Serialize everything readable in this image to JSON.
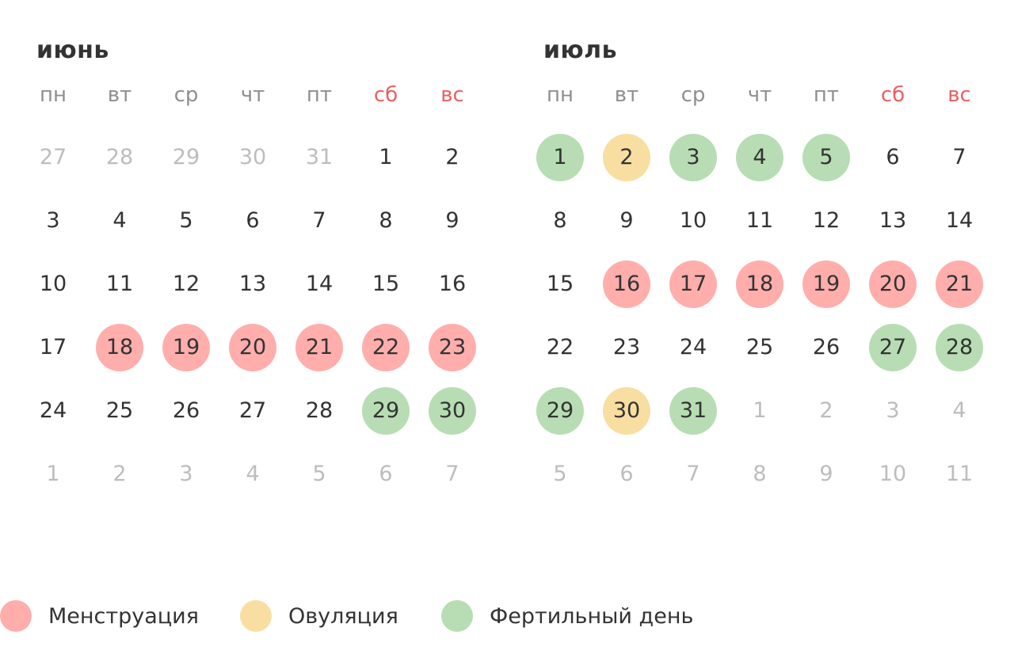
{
  "colors": {
    "menstruation": "#ffaeac",
    "ovulation": "#f9dea1",
    "fertile": "#b8ddb4",
    "weekend_header": "#ec5f5f",
    "text": "#333333",
    "muted": "#bdbdbd"
  },
  "weekdays": [
    "пн",
    "вт",
    "ср",
    "чт",
    "пт",
    "сб",
    "вс"
  ],
  "months": [
    {
      "title": "июнь",
      "weeks": [
        [
          {
            "d": "27",
            "t": "other"
          },
          {
            "d": "28",
            "t": "other"
          },
          {
            "d": "29",
            "t": "other"
          },
          {
            "d": "30",
            "t": "other"
          },
          {
            "d": "31",
            "t": "other"
          },
          {
            "d": "1",
            "t": ""
          },
          {
            "d": "2",
            "t": ""
          }
        ],
        [
          {
            "d": "3",
            "t": ""
          },
          {
            "d": "4",
            "t": ""
          },
          {
            "d": "5",
            "t": ""
          },
          {
            "d": "6",
            "t": ""
          },
          {
            "d": "7",
            "t": ""
          },
          {
            "d": "8",
            "t": ""
          },
          {
            "d": "9",
            "t": ""
          }
        ],
        [
          {
            "d": "10",
            "t": ""
          },
          {
            "d": "11",
            "t": ""
          },
          {
            "d": "12",
            "t": ""
          },
          {
            "d": "13",
            "t": ""
          },
          {
            "d": "14",
            "t": ""
          },
          {
            "d": "15",
            "t": ""
          },
          {
            "d": "16",
            "t": ""
          }
        ],
        [
          {
            "d": "17",
            "t": ""
          },
          {
            "d": "18",
            "t": "menstruation"
          },
          {
            "d": "19",
            "t": "menstruation"
          },
          {
            "d": "20",
            "t": "menstruation"
          },
          {
            "d": "21",
            "t": "menstruation"
          },
          {
            "d": "22",
            "t": "menstruation"
          },
          {
            "d": "23",
            "t": "menstruation"
          }
        ],
        [
          {
            "d": "24",
            "t": ""
          },
          {
            "d": "25",
            "t": ""
          },
          {
            "d": "26",
            "t": ""
          },
          {
            "d": "27",
            "t": ""
          },
          {
            "d": "28",
            "t": ""
          },
          {
            "d": "29",
            "t": "fertile"
          },
          {
            "d": "30",
            "t": "fertile"
          }
        ],
        [
          {
            "d": "1",
            "t": "other"
          },
          {
            "d": "2",
            "t": "other"
          },
          {
            "d": "3",
            "t": "other"
          },
          {
            "d": "4",
            "t": "other"
          },
          {
            "d": "5",
            "t": "other"
          },
          {
            "d": "6",
            "t": "other"
          },
          {
            "d": "7",
            "t": "other"
          }
        ]
      ]
    },
    {
      "title": "июль",
      "weeks": [
        [
          {
            "d": "1",
            "t": "fertile"
          },
          {
            "d": "2",
            "t": "ovulation"
          },
          {
            "d": "3",
            "t": "fertile"
          },
          {
            "d": "4",
            "t": "fertile"
          },
          {
            "d": "5",
            "t": "fertile"
          },
          {
            "d": "6",
            "t": ""
          },
          {
            "d": "7",
            "t": ""
          }
        ],
        [
          {
            "d": "8",
            "t": ""
          },
          {
            "d": "9",
            "t": ""
          },
          {
            "d": "10",
            "t": ""
          },
          {
            "d": "11",
            "t": ""
          },
          {
            "d": "12",
            "t": ""
          },
          {
            "d": "13",
            "t": ""
          },
          {
            "d": "14",
            "t": ""
          }
        ],
        [
          {
            "d": "15",
            "t": ""
          },
          {
            "d": "16",
            "t": "menstruation"
          },
          {
            "d": "17",
            "t": "menstruation"
          },
          {
            "d": "18",
            "t": "menstruation"
          },
          {
            "d": "19",
            "t": "menstruation"
          },
          {
            "d": "20",
            "t": "menstruation"
          },
          {
            "d": "21",
            "t": "menstruation"
          }
        ],
        [
          {
            "d": "22",
            "t": ""
          },
          {
            "d": "23",
            "t": ""
          },
          {
            "d": "24",
            "t": ""
          },
          {
            "d": "25",
            "t": ""
          },
          {
            "d": "26",
            "t": ""
          },
          {
            "d": "27",
            "t": "fertile"
          },
          {
            "d": "28",
            "t": "fertile"
          }
        ],
        [
          {
            "d": "29",
            "t": "fertile"
          },
          {
            "d": "30",
            "t": "ovulation"
          },
          {
            "d": "31",
            "t": "fertile"
          },
          {
            "d": "1",
            "t": "other"
          },
          {
            "d": "2",
            "t": "other"
          },
          {
            "d": "3",
            "t": "other"
          },
          {
            "d": "4",
            "t": "other"
          }
        ],
        [
          {
            "d": "5",
            "t": "other"
          },
          {
            "d": "6",
            "t": "other"
          },
          {
            "d": "7",
            "t": "other"
          },
          {
            "d": "8",
            "t": "other"
          },
          {
            "d": "9",
            "t": "other"
          },
          {
            "d": "10",
            "t": "other"
          },
          {
            "d": "11",
            "t": "other"
          }
        ]
      ]
    }
  ],
  "legend": [
    {
      "key": "menstruation",
      "label": "Менструация"
    },
    {
      "key": "ovulation",
      "label": "Овуляция"
    },
    {
      "key": "fertile",
      "label": "Фертильный день"
    }
  ]
}
